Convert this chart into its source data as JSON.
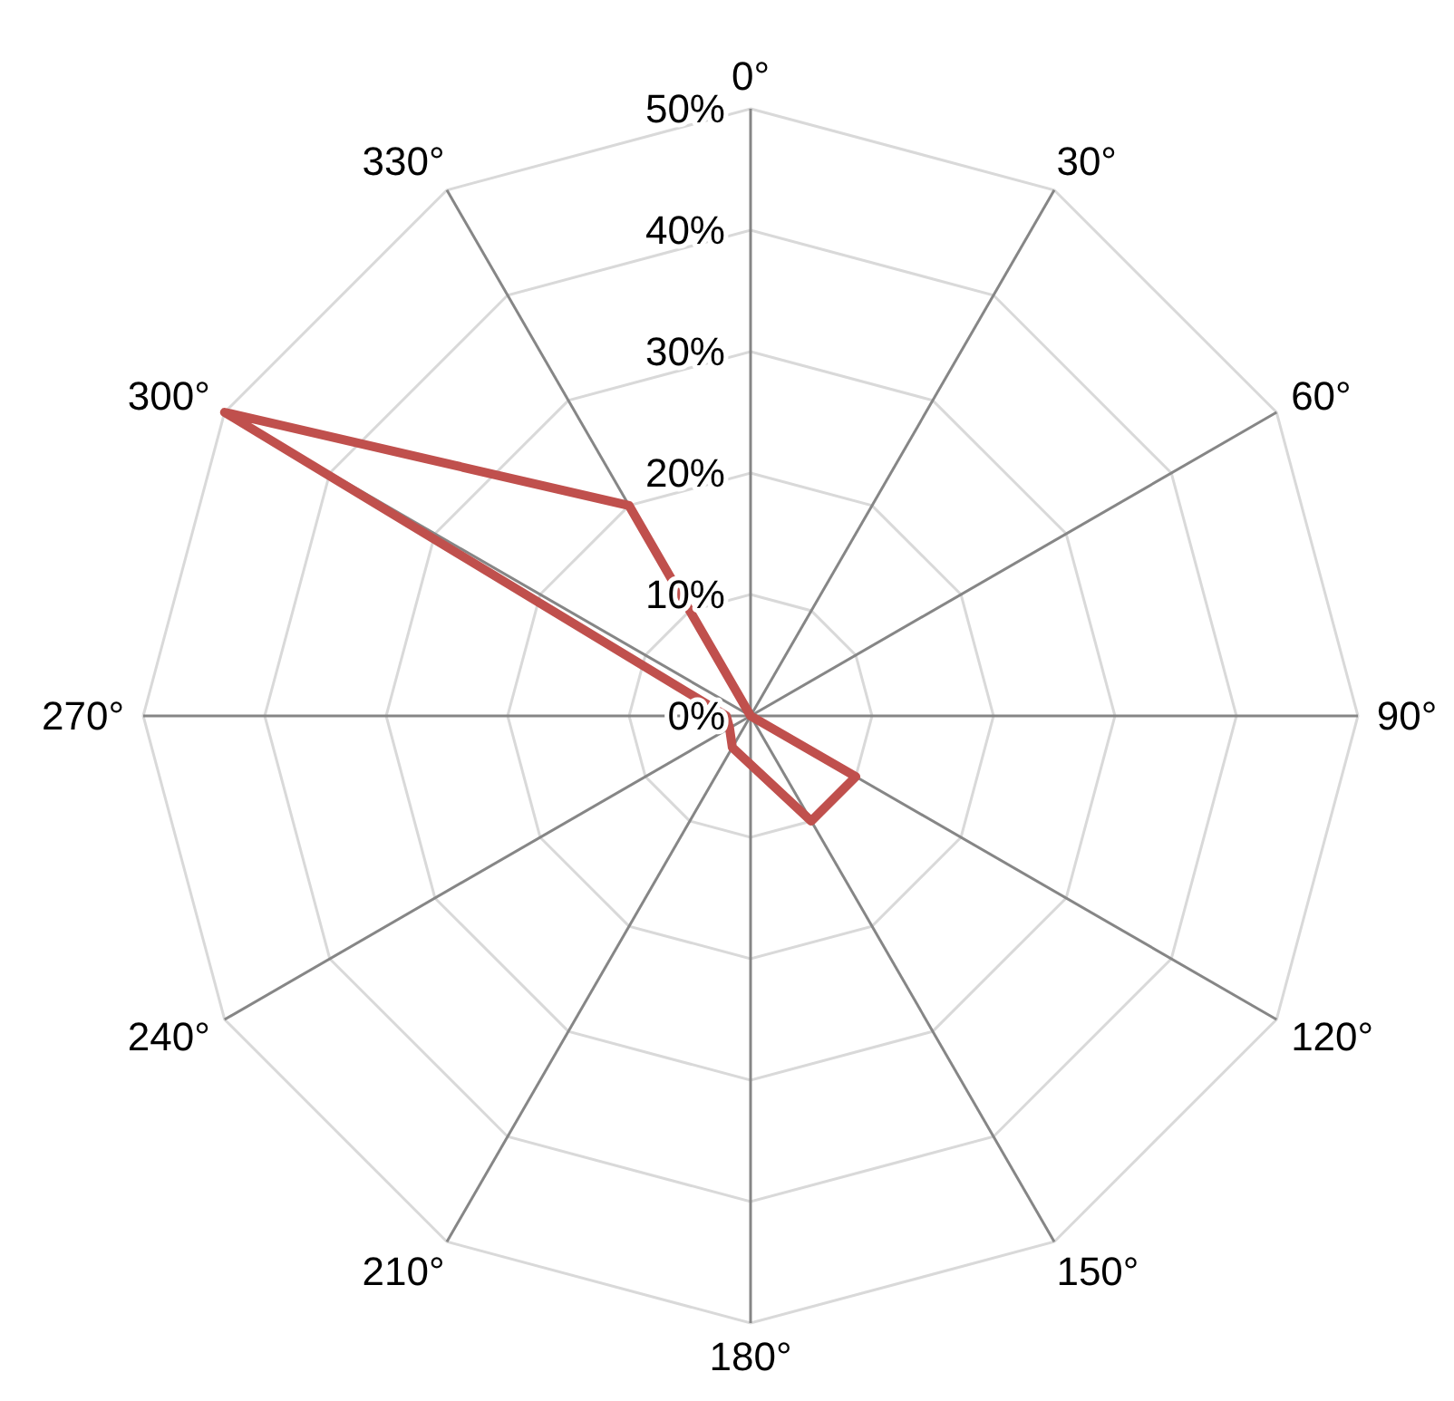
{
  "chart_data": {
    "type": "radar",
    "categories": [
      "0°",
      "30°",
      "60°",
      "90°",
      "120°",
      "150°",
      "180°",
      "210°",
      "240°",
      "270°",
      "300°",
      "330°"
    ],
    "series": [
      {
        "color": "#c0504d",
        "values": [
          0,
          0,
          0,
          0,
          10,
          10,
          4,
          3,
          2,
          2,
          50,
          20
        ]
      }
    ],
    "ylim": [
      0,
      50
    ],
    "yticks": [
      {
        "value": 0,
        "label": "0%"
      },
      {
        "value": 10,
        "label": "10%"
      },
      {
        "value": 20,
        "label": "20%"
      },
      {
        "value": 30,
        "label": "30%"
      },
      {
        "value": 40,
        "label": "40%"
      },
      {
        "value": 50,
        "label": "50%"
      }
    ],
    "grid": true
  }
}
